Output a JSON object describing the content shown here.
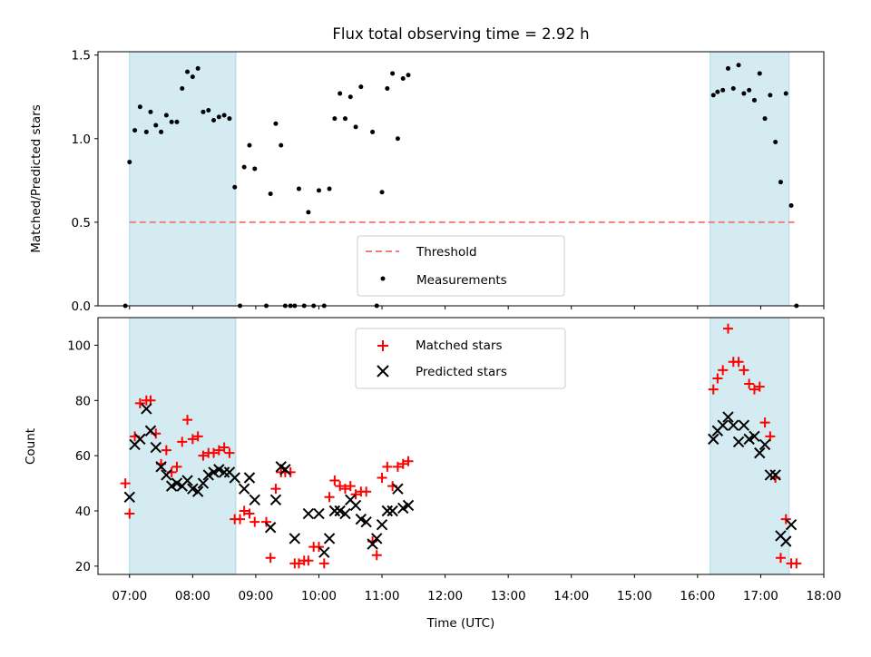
{
  "chart_data": [
    {
      "type": "scatter",
      "title": "Flux total observing time = 2.92 h",
      "xlabel": "",
      "ylabel": "Matched/Predicted stars",
      "xlim": [
        "06:30",
        "18:00"
      ],
      "ylim": [
        0,
        1.52
      ],
      "yticks": [
        "0.0",
        "0.5",
        "1.0",
        "1.5"
      ],
      "legend": {
        "position": "lower-center",
        "entries": [
          "Threshold",
          "Measurements"
        ]
      },
      "threshold": {
        "name": "Threshold",
        "y": 0.5,
        "x": [
          "07:00",
          "17:32"
        ],
        "color": "#f08080"
      },
      "highlight_spans": [
        [
          "07:00",
          "08:41"
        ],
        [
          "16:12",
          "17:27"
        ]
      ],
      "highlight_color": "#add8e6",
      "series": [
        {
          "name": "Measurements",
          "color": "#000000",
          "points": [
            [
              "06:56",
              0.0
            ],
            [
              "07:00",
              0.86
            ],
            [
              "07:05",
              1.05
            ],
            [
              "07:10",
              1.19
            ],
            [
              "07:16",
              1.04
            ],
            [
              "07:20",
              1.16
            ],
            [
              "07:25",
              1.08
            ],
            [
              "07:30",
              1.04
            ],
            [
              "07:35",
              1.14
            ],
            [
              "07:40",
              1.1
            ],
            [
              "07:45",
              1.1
            ],
            [
              "07:50",
              1.3
            ],
            [
              "07:55",
              1.4
            ],
            [
              "08:00",
              1.37
            ],
            [
              "08:05",
              1.42
            ],
            [
              "08:10",
              1.16
            ],
            [
              "08:15",
              1.17
            ],
            [
              "08:20",
              1.11
            ],
            [
              "08:25",
              1.13
            ],
            [
              "08:30",
              1.14
            ],
            [
              "08:35",
              1.12
            ],
            [
              "08:40",
              0.71
            ],
            [
              "08:45",
              0.0
            ],
            [
              "08:49",
              0.83
            ],
            [
              "08:54",
              0.96
            ],
            [
              "08:59",
              0.82
            ],
            [
              "09:10",
              0.0
            ],
            [
              "09:14",
              0.67
            ],
            [
              "09:19",
              1.09
            ],
            [
              "09:24",
              0.96
            ],
            [
              "09:28",
              0.0
            ],
            [
              "09:33",
              0.0
            ],
            [
              "09:37",
              0.0
            ],
            [
              "09:41",
              0.7
            ],
            [
              "09:46",
              0.0
            ],
            [
              "09:50",
              0.56
            ],
            [
              "09:55",
              0.0
            ],
            [
              "10:00",
              0.69
            ],
            [
              "10:05",
              0.0
            ],
            [
              "10:10",
              0.7
            ],
            [
              "10:15",
              1.12
            ],
            [
              "10:20",
              1.27
            ],
            [
              "10:25",
              1.12
            ],
            [
              "10:30",
              1.25
            ],
            [
              "10:35",
              1.07
            ],
            [
              "10:40",
              1.31
            ],
            [
              "10:51",
              1.04
            ],
            [
              "10:55",
              0.0
            ],
            [
              "11:00",
              0.68
            ],
            [
              "11:05",
              1.3
            ],
            [
              "11:10",
              1.39
            ],
            [
              "11:15",
              1.0
            ],
            [
              "11:20",
              1.36
            ],
            [
              "11:25",
              1.38
            ],
            [
              "16:15",
              1.26
            ],
            [
              "16:19",
              1.28
            ],
            [
              "16:24",
              1.29
            ],
            [
              "16:29",
              1.42
            ],
            [
              "16:34",
              1.3
            ],
            [
              "16:39",
              1.44
            ],
            [
              "16:44",
              1.27
            ],
            [
              "16:49",
              1.29
            ],
            [
              "16:54",
              1.23
            ],
            [
              "16:59",
              1.39
            ],
            [
              "17:04",
              1.12
            ],
            [
              "17:09",
              1.26
            ],
            [
              "17:14",
              0.98
            ],
            [
              "17:19",
              0.74
            ],
            [
              "17:24",
              1.27
            ],
            [
              "17:29",
              0.6
            ],
            [
              "17:34",
              0.0
            ]
          ]
        }
      ]
    },
    {
      "type": "scatter",
      "title": "",
      "xlabel": "Time (UTC)",
      "ylabel": "Count",
      "xlim": [
        "06:30",
        "18:00"
      ],
      "ylim": [
        17,
        110
      ],
      "yticks": [
        "20",
        "40",
        "60",
        "80",
        "100"
      ],
      "xticks": [
        "07:00",
        "08:00",
        "09:00",
        "10:00",
        "11:00",
        "12:00",
        "13:00",
        "14:00",
        "15:00",
        "16:00",
        "17:00",
        "18:00"
      ],
      "legend": {
        "position": "upper-center",
        "entries": [
          "Matched stars",
          "Predicted stars"
        ]
      },
      "highlight_spans": [
        [
          "07:00",
          "08:41"
        ],
        [
          "16:12",
          "17:27"
        ]
      ],
      "highlight_color": "#add8e6",
      "series": [
        {
          "name": "Matched stars",
          "color": "#ff0000",
          "marker": "+",
          "points": [
            [
              "06:56",
              50
            ],
            [
              "07:00",
              39
            ],
            [
              "07:05",
              67
            ],
            [
              "07:10",
              79
            ],
            [
              "07:16",
              80
            ],
            [
              "07:20",
              80
            ],
            [
              "07:25",
              68
            ],
            [
              "07:30",
              57
            ],
            [
              "07:35",
              62
            ],
            [
              "07:40",
              54
            ],
            [
              "07:45",
              56
            ],
            [
              "07:50",
              65
            ],
            [
              "07:55",
              73
            ],
            [
              "08:00",
              66
            ],
            [
              "08:05",
              67
            ],
            [
              "08:10",
              60
            ],
            [
              "08:15",
              61
            ],
            [
              "08:20",
              61
            ],
            [
              "08:25",
              62
            ],
            [
              "08:30",
              63
            ],
            [
              "08:35",
              61
            ],
            [
              "08:40",
              37
            ],
            [
              "08:45",
              37
            ],
            [
              "08:49",
              40
            ],
            [
              "08:54",
              39
            ],
            [
              "08:59",
              36
            ],
            [
              "09:10",
              36
            ],
            [
              "09:14",
              23
            ],
            [
              "09:19",
              48
            ],
            [
              "09:24",
              54
            ],
            [
              "09:28",
              54
            ],
            [
              "09:33",
              54
            ],
            [
              "09:37",
              21
            ],
            [
              "09:41",
              21
            ],
            [
              "09:46",
              22
            ],
            [
              "09:50",
              22
            ],
            [
              "09:55",
              27
            ],
            [
              "10:00",
              27
            ],
            [
              "10:05",
              21
            ],
            [
              "10:10",
              45
            ],
            [
              "10:15",
              51
            ],
            [
              "10:20",
              49
            ],
            [
              "10:25",
              48
            ],
            [
              "10:30",
              49
            ],
            [
              "10:35",
              46
            ],
            [
              "10:40",
              47
            ],
            [
              "10:45",
              47
            ],
            [
              "10:51",
              29
            ],
            [
              "10:55",
              24
            ],
            [
              "11:00",
              52
            ],
            [
              "11:05",
              56
            ],
            [
              "11:10",
              49
            ],
            [
              "11:15",
              56
            ],
            [
              "11:20",
              57
            ],
            [
              "11:25",
              58
            ],
            [
              "16:15",
              84
            ],
            [
              "16:19",
              88
            ],
            [
              "16:24",
              91
            ],
            [
              "16:29",
              106
            ],
            [
              "16:34",
              94
            ],
            [
              "16:39",
              94
            ],
            [
              "16:44",
              91
            ],
            [
              "16:49",
              86
            ],
            [
              "16:54",
              84
            ],
            [
              "16:59",
              85
            ],
            [
              "17:04",
              72
            ],
            [
              "17:09",
              67
            ],
            [
              "17:14",
              52
            ],
            [
              "17:19",
              23
            ],
            [
              "17:24",
              37
            ],
            [
              "17:29",
              21
            ],
            [
              "17:34",
              21
            ]
          ]
        },
        {
          "name": "Predicted stars",
          "color": "#000000",
          "marker": "x",
          "points": [
            [
              "07:00",
              45
            ],
            [
              "07:05",
              64
            ],
            [
              "07:10",
              66
            ],
            [
              "07:16",
              77
            ],
            [
              "07:20",
              69
            ],
            [
              "07:25",
              63
            ],
            [
              "07:30",
              56
            ],
            [
              "07:35",
              53
            ],
            [
              "07:40",
              49
            ],
            [
              "07:45",
              50
            ],
            [
              "07:50",
              49
            ],
            [
              "07:55",
              51
            ],
            [
              "08:00",
              48
            ],
            [
              "08:05",
              47
            ],
            [
              "08:10",
              50
            ],
            [
              "08:15",
              53
            ],
            [
              "08:20",
              54
            ],
            [
              "08:25",
              55
            ],
            [
              "08:30",
              54
            ],
            [
              "08:35",
              54
            ],
            [
              "08:40",
              52
            ],
            [
              "08:49",
              48
            ],
            [
              "08:54",
              52
            ],
            [
              "08:59",
              44
            ],
            [
              "09:14",
              34
            ],
            [
              "09:19",
              44
            ],
            [
              "09:24",
              56
            ],
            [
              "09:28",
              55
            ],
            [
              "09:37",
              30
            ],
            [
              "09:50",
              39
            ],
            [
              "10:00",
              39
            ],
            [
              "10:05",
              25
            ],
            [
              "10:10",
              30
            ],
            [
              "10:15",
              40
            ],
            [
              "10:20",
              40
            ],
            [
              "10:25",
              39
            ],
            [
              "10:30",
              44
            ],
            [
              "10:35",
              42
            ],
            [
              "10:40",
              37
            ],
            [
              "10:45",
              36
            ],
            [
              "10:51",
              28
            ],
            [
              "10:55",
              30
            ],
            [
              "11:00",
              35
            ],
            [
              "11:05",
              40
            ],
            [
              "11:10",
              40
            ],
            [
              "11:15",
              48
            ],
            [
              "11:20",
              41
            ],
            [
              "11:25",
              42
            ],
            [
              "16:15",
              66
            ],
            [
              "16:19",
              69
            ],
            [
              "16:24",
              71
            ],
            [
              "16:29",
              74
            ],
            [
              "16:34",
              71
            ],
            [
              "16:39",
              65
            ],
            [
              "16:44",
              71
            ],
            [
              "16:49",
              66
            ],
            [
              "16:54",
              67
            ],
            [
              "16:59",
              61
            ],
            [
              "17:04",
              64
            ],
            [
              "17:09",
              53
            ],
            [
              "17:14",
              53
            ],
            [
              "17:19",
              31
            ],
            [
              "17:24",
              29
            ],
            [
              "17:29",
              35
            ]
          ]
        }
      ]
    }
  ]
}
